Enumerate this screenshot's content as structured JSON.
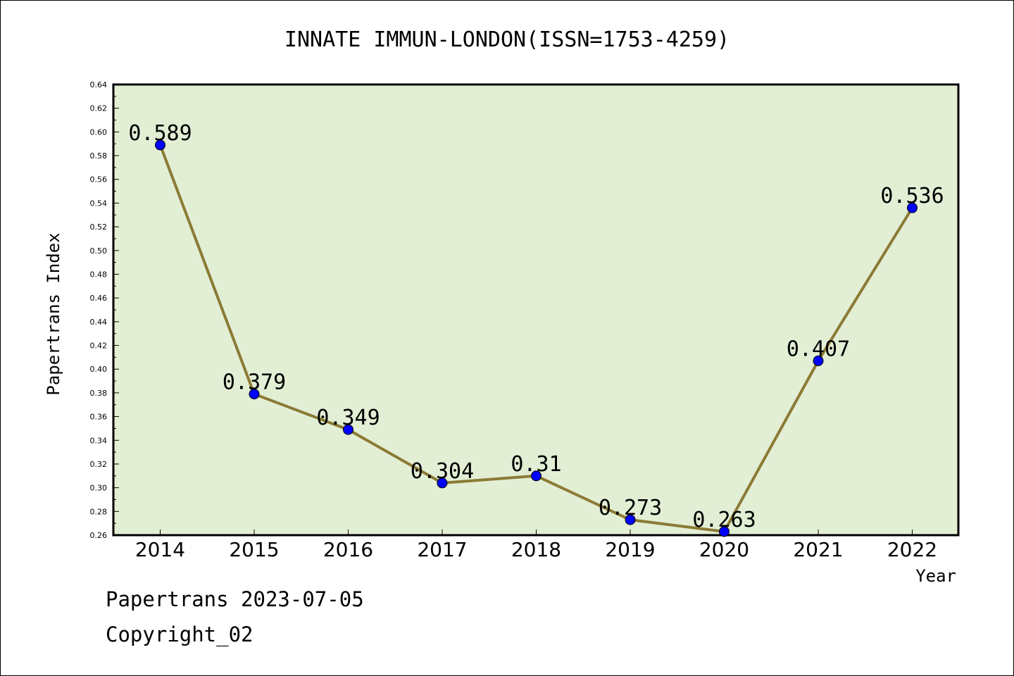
{
  "chart_data": {
    "type": "line",
    "title": "INNATE IMMUN-LONDON(ISSN=1753-4259)",
    "xlabel": "Year",
    "ylabel": "Papertrans Index",
    "categories": [
      "2014",
      "2015",
      "2016",
      "2017",
      "2018",
      "2019",
      "2020",
      "2021",
      "2022"
    ],
    "values": [
      0.589,
      0.379,
      0.349,
      0.304,
      0.31,
      0.273,
      0.263,
      0.407,
      0.536
    ],
    "value_labels": [
      "0.589",
      "0.379",
      "0.349",
      "0.304",
      "0.31",
      "0.273",
      "0.263",
      "0.407",
      "0.536"
    ],
    "ylim": [
      0.26,
      0.64
    ],
    "yticks": [
      "0.26",
      "0.28",
      "0.30",
      "0.32",
      "0.34",
      "0.36",
      "0.38",
      "0.40",
      "0.42",
      "0.44",
      "0.46",
      "0.48",
      "0.50",
      "0.52",
      "0.54",
      "0.56",
      "0.58",
      "0.60",
      "0.62",
      "0.64"
    ],
    "grid": false,
    "colors": {
      "plot_background": "#e2efd5",
      "line": "#8c7a35",
      "marker": "#0000ff"
    }
  },
  "footer": {
    "date_line": "Papertrans 2023-07-05",
    "copyright": "Copyright_02"
  }
}
